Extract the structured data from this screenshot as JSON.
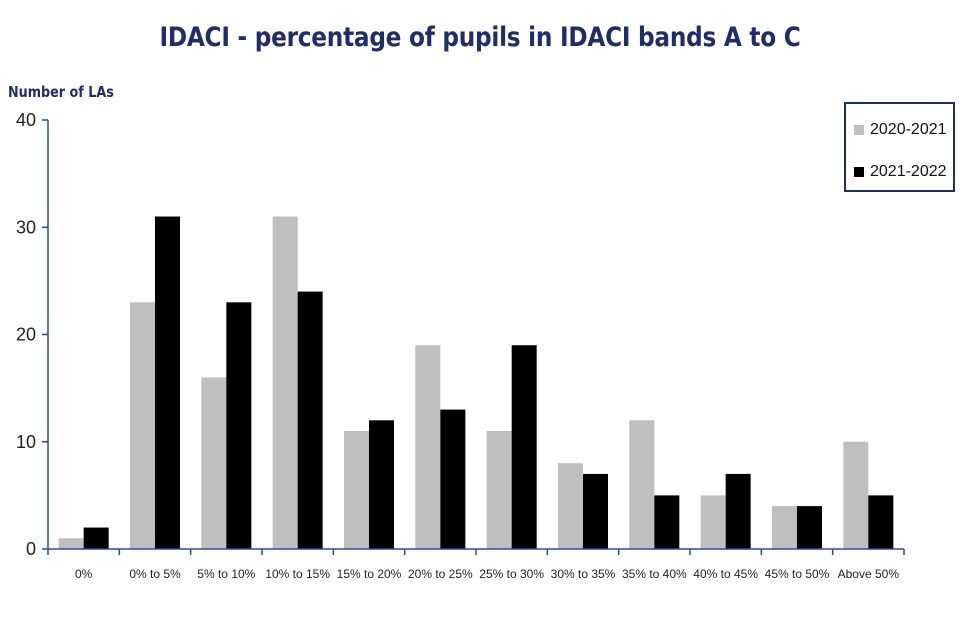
{
  "chart_data": {
    "type": "bar",
    "title": "IDACI - percentage of pupils in IDACI bands A to C",
    "ylabel": "Number of LAs",
    "xlabel": "",
    "ylim": [
      0,
      40
    ],
    "yticks": [
      "0",
      "10",
      "20",
      "30",
      "40"
    ],
    "categories": [
      "0%",
      "0% to 5%",
      "5% to 10%",
      "10% to 15%",
      "15% to 20%",
      "20% to 25%",
      "25% to 30%",
      "30% to 35%",
      "35% to 40%",
      "40% to 45%",
      "45% to 50%",
      "Above 50%"
    ],
    "series": [
      {
        "name": "2020-2021",
        "color": "#bfbfbf",
        "values": [
          1,
          23,
          16,
          31,
          11,
          19,
          11,
          8,
          12,
          5,
          4,
          10
        ]
      },
      {
        "name": "2021-2022",
        "color": "#000000",
        "values": [
          2,
          31,
          23,
          24,
          12,
          13,
          19,
          7,
          5,
          7,
          4,
          5
        ]
      }
    ],
    "legend_position": "top-right",
    "grid": false
  }
}
